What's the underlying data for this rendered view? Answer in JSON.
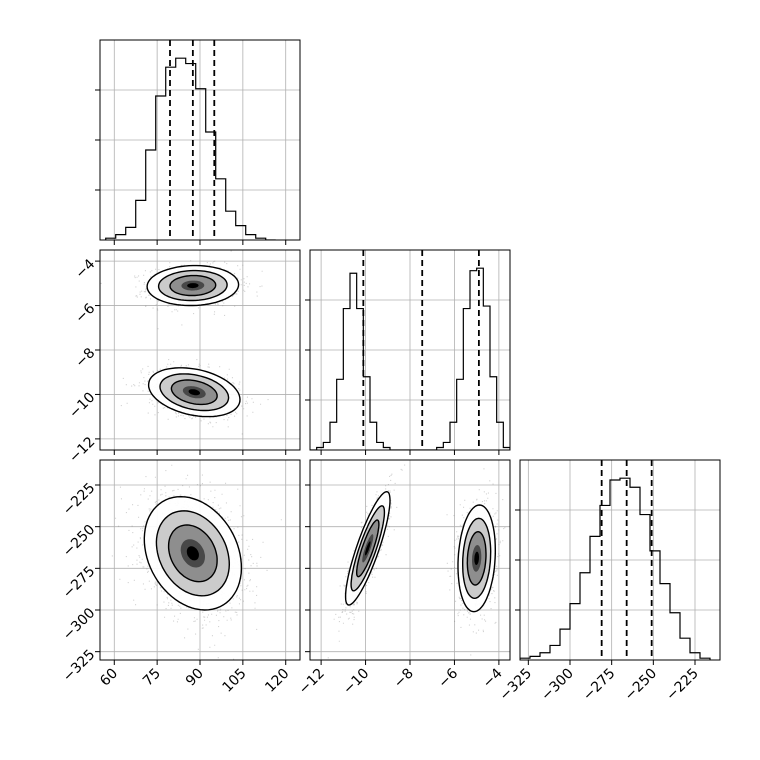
{
  "chart_data": {
    "type": "corner",
    "params": [
      {
        "id": "p0",
        "range": [
          55,
          125
        ],
        "ticks": [
          60,
          75,
          90,
          105,
          120
        ]
      },
      {
        "id": "p1",
        "range": [
          -12.5,
          -3.5
        ],
        "ticks": [
          -12,
          -10,
          -8,
          -6,
          -4
        ]
      },
      {
        "id": "p2",
        "range": [
          -330,
          -210
        ],
        "ticks": [
          -325,
          -300,
          -275,
          -250,
          -225
        ]
      }
    ],
    "tick_label_text": {
      "p0": [
        "60",
        "75",
        "90",
        "105",
        "120"
      ],
      "p1": [
        "−12",
        "−10",
        "−8",
        "−6",
        "−4"
      ],
      "p2": [
        "−325",
        "−300",
        "−275",
        "−250",
        "−225"
      ]
    },
    "histograms": [
      {
        "param": "p0",
        "bin_edges": [
          57,
          60.5,
          64,
          67.5,
          71,
          74.5,
          78,
          81.5,
          85,
          88.5,
          92,
          95.5,
          99,
          102.5,
          106,
          109.5,
          113,
          116.5
        ],
        "counts": [
          1,
          3,
          7,
          22,
          50,
          80,
          96,
          101,
          98,
          84,
          60,
          34,
          16,
          8,
          3,
          1,
          0
        ],
        "quantiles": [
          79.5,
          87.5,
          95
        ]
      },
      {
        "param": "p1",
        "bin_edges": [
          -12.5,
          -12.2,
          -11.9,
          -11.6,
          -11.3,
          -11,
          -10.7,
          -10.4,
          -10.1,
          -9.8,
          -9.5,
          -9.2,
          -8.9,
          -8.6,
          -8.3,
          -8,
          -7.7,
          -7.4,
          -7.1,
          -6.8,
          -6.5,
          -6.2,
          -5.9,
          -5.6,
          -5.3,
          -5,
          -4.7,
          -4.4,
          -4.1,
          -3.8,
          -3.5
        ],
        "counts": [
          0,
          1,
          3,
          11,
          28,
          56,
          70,
          56,
          29,
          11,
          3,
          1,
          0,
          0,
          0,
          0,
          0,
          0,
          0,
          1,
          3,
          11,
          28,
          56,
          71,
          72,
          57,
          29,
          11,
          1
        ],
        "quantiles": [
          -10.1,
          -7.45,
          -4.9
        ]
      },
      {
        "param": "p2",
        "bin_edges": [
          -330,
          -324,
          -318,
          -312,
          -306,
          -300,
          -294,
          -288,
          -282,
          -276,
          -270,
          -264,
          -258,
          -252,
          -246,
          -240,
          -234,
          -228,
          -222,
          -216
        ],
        "counts": [
          1,
          2,
          4,
          8,
          17,
          31,
          48,
          68,
          85,
          99,
          100,
          95,
          80,
          60,
          42,
          26,
          12,
          4,
          1
        ],
        "quantiles": [
          -281,
          -266,
          -251
        ]
      }
    ],
    "scatter_panels": [
      {
        "x": "p0",
        "y": "p1",
        "modes": [
          {
            "center": [
              87.5,
              -5.1
            ],
            "sd": [
              8,
              0.45
            ],
            "rho": 0.05,
            "n": 900
          },
          {
            "center": [
              88,
              -9.9
            ],
            "sd": [
              8,
              0.55
            ],
            "rho": -0.3,
            "n": 900
          }
        ]
      },
      {
        "x": "p0",
        "y": "p2",
        "modes": [
          {
            "center": [
              87.5,
              -266
            ],
            "sd": [
              8.5,
              17
            ],
            "rho": -0.25,
            "n": 1700
          }
        ]
      },
      {
        "x": "p1",
        "y": "p2",
        "modes": [
          {
            "center": [
              -9.9,
              -263
            ],
            "sd": [
              0.5,
              17
            ],
            "rho": 0.85,
            "n": 900
          },
          {
            "center": [
              -5.0,
              -269
            ],
            "sd": [
              0.42,
              16
            ],
            "rho": 0.15,
            "n": 900
          }
        ]
      }
    ],
    "contour_sigmas": [
      0.5,
      1.0,
      1.5,
      2.0
    ],
    "grid": true,
    "colors": {
      "scatter": "#808080",
      "density": "#000000"
    }
  }
}
